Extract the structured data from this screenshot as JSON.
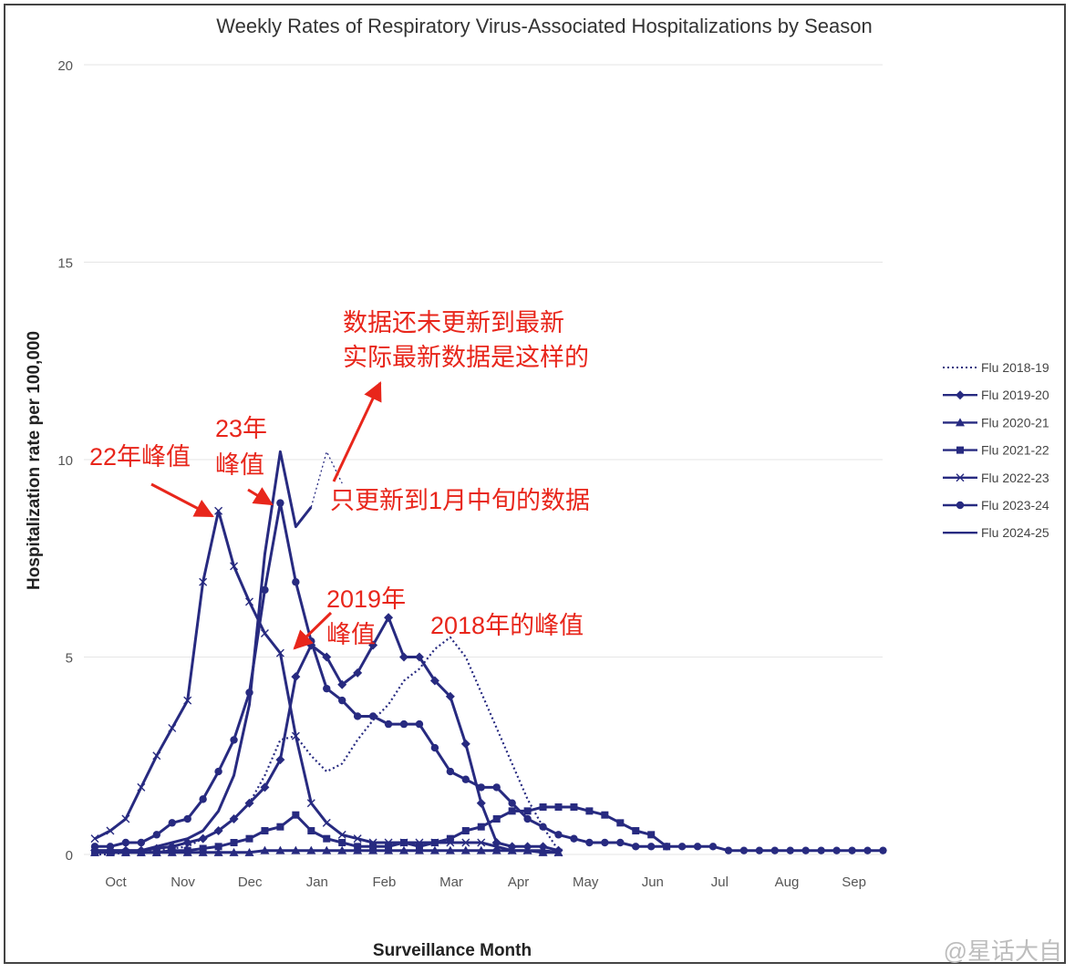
{
  "chart_data": {
    "type": "line",
    "title": "Weekly Rates of Respiratory Virus-Associated Hospitalizations by Season",
    "xlabel": "Surveillance Month",
    "ylabel": "Hospitalization rate per 100,000",
    "ylim": [
      0,
      20
    ],
    "yticks": [
      "0",
      "5",
      "10",
      "15",
      "20"
    ],
    "xticks": [
      "Oct",
      "Nov",
      "Dec",
      "Jan",
      "Feb",
      "Mar",
      "Apr",
      "May",
      "Jun",
      "Jul",
      "Aug",
      "Sep"
    ],
    "grid": true,
    "legend_position": "right",
    "series": [
      {
        "name": "Flu 2018-19",
        "style": "dotted",
        "marker": "none",
        "values": [
          0.0,
          0.0,
          0.05,
          0.1,
          0.1,
          0.15,
          0.2,
          0.4,
          0.6,
          0.9,
          1.3,
          2.0,
          2.9,
          3.0,
          2.5,
          2.1,
          2.3,
          2.9,
          3.4,
          3.8,
          4.4,
          4.7,
          5.2,
          5.5,
          5.0,
          4.1,
          3.2,
          2.3,
          1.4,
          0.7,
          0.1
        ]
      },
      {
        "name": "Flu 2019-20",
        "style": "solid",
        "marker": "diamond",
        "values": [
          0.1,
          0.1,
          0.1,
          0.1,
          0.15,
          0.2,
          0.3,
          0.4,
          0.6,
          0.9,
          1.3,
          1.7,
          2.4,
          4.5,
          5.3,
          5.0,
          4.3,
          4.6,
          5.3,
          6.0,
          5.0,
          5.0,
          4.4,
          4.0,
          2.8,
          1.3,
          0.3,
          0.2,
          0.2,
          0.2,
          0.1
        ]
      },
      {
        "name": "Flu 2020-21",
        "style": "solid",
        "marker": "triangle",
        "values": [
          0.05,
          0.05,
          0.05,
          0.05,
          0.05,
          0.05,
          0.05,
          0.05,
          0.05,
          0.05,
          0.05,
          0.1,
          0.1,
          0.1,
          0.1,
          0.1,
          0.1,
          0.1,
          0.1,
          0.1,
          0.1,
          0.1,
          0.1,
          0.1,
          0.1,
          0.1,
          0.1,
          0.1,
          0.1,
          0.05,
          0.05
        ]
      },
      {
        "name": "Flu 2021-22",
        "style": "solid",
        "marker": "square",
        "values": [
          0.05,
          0.05,
          0.05,
          0.05,
          0.05,
          0.1,
          0.1,
          0.15,
          0.2,
          0.3,
          0.4,
          0.6,
          0.7,
          1.0,
          0.6,
          0.4,
          0.3,
          0.2,
          0.2,
          0.2,
          0.3,
          0.2,
          0.3,
          0.4,
          0.6,
          0.7,
          0.9,
          1.1,
          1.1,
          1.2,
          1.2,
          1.2,
          1.1,
          1.0,
          0.8,
          0.6,
          0.5,
          0.2
        ]
      },
      {
        "name": "Flu 2022-23",
        "style": "solid",
        "marker": "x",
        "values": [
          0.4,
          0.6,
          0.9,
          1.7,
          2.5,
          3.2,
          3.9,
          6.9,
          8.7,
          7.3,
          6.4,
          5.6,
          5.1,
          3.0,
          1.3,
          0.8,
          0.5,
          0.4,
          0.3,
          0.3,
          0.3,
          0.3,
          0.3,
          0.3,
          0.3,
          0.3,
          0.2,
          0.1,
          0.1,
          0.1,
          0.05
        ]
      },
      {
        "name": "Flu 2023-24",
        "style": "solid",
        "marker": "circle",
        "values": [
          0.2,
          0.2,
          0.3,
          0.3,
          0.5,
          0.8,
          0.9,
          1.4,
          2.1,
          2.9,
          4.1,
          6.7,
          8.9,
          6.9,
          5.4,
          4.2,
          3.9,
          3.5,
          3.5,
          3.3,
          3.3,
          3.3,
          2.7,
          2.1,
          1.9,
          1.7,
          1.7,
          1.3,
          0.9,
          0.7,
          0.5,
          0.4,
          0.3,
          0.3,
          0.3,
          0.2,
          0.2,
          0.2,
          0.2,
          0.2,
          0.2,
          0.1,
          0.1,
          0.1,
          0.1,
          0.1,
          0.1,
          0.1,
          0.1,
          0.1,
          0.1,
          0.1
        ]
      },
      {
        "name": "Flu 2024-25",
        "style": "solid",
        "marker": "none",
        "values": [
          0.1,
          0.1,
          0.1,
          0.1,
          0.2,
          0.3,
          0.4,
          0.6,
          1.1,
          2.0,
          3.8,
          7.6,
          10.2,
          8.3,
          8.8
        ]
      }
    ],
    "extension": {
      "description": "",
      "values": [
        8.8,
        10.2,
        9.4
      ]
    }
  },
  "annotations": [
    {
      "id": "anno-not-updated-line1",
      "text": "数据还未更新到最新"
    },
    {
      "id": "anno-not-updated-line2",
      "text": "实际最新数据是这样的"
    },
    {
      "id": "anno-only-mid-jan",
      "text": "只更新到1月中旬的数据"
    },
    {
      "id": "anno-22-peak",
      "text": "22年峰值"
    },
    {
      "id": "anno-23-line1",
      "text": "23年"
    },
    {
      "id": "anno-23-line2",
      "text": "峰值"
    },
    {
      "id": "anno-2019-line1",
      "text": "2019年"
    },
    {
      "id": "anno-2019-line2",
      "text": "峰值"
    },
    {
      "id": "anno-2018-peak",
      "text": "2018年的峰值"
    }
  ],
  "colors": {
    "series": "#272a80",
    "annotation": "#e8261b",
    "grid": "#e6e6e6"
  },
  "watermark": "@星话大自"
}
